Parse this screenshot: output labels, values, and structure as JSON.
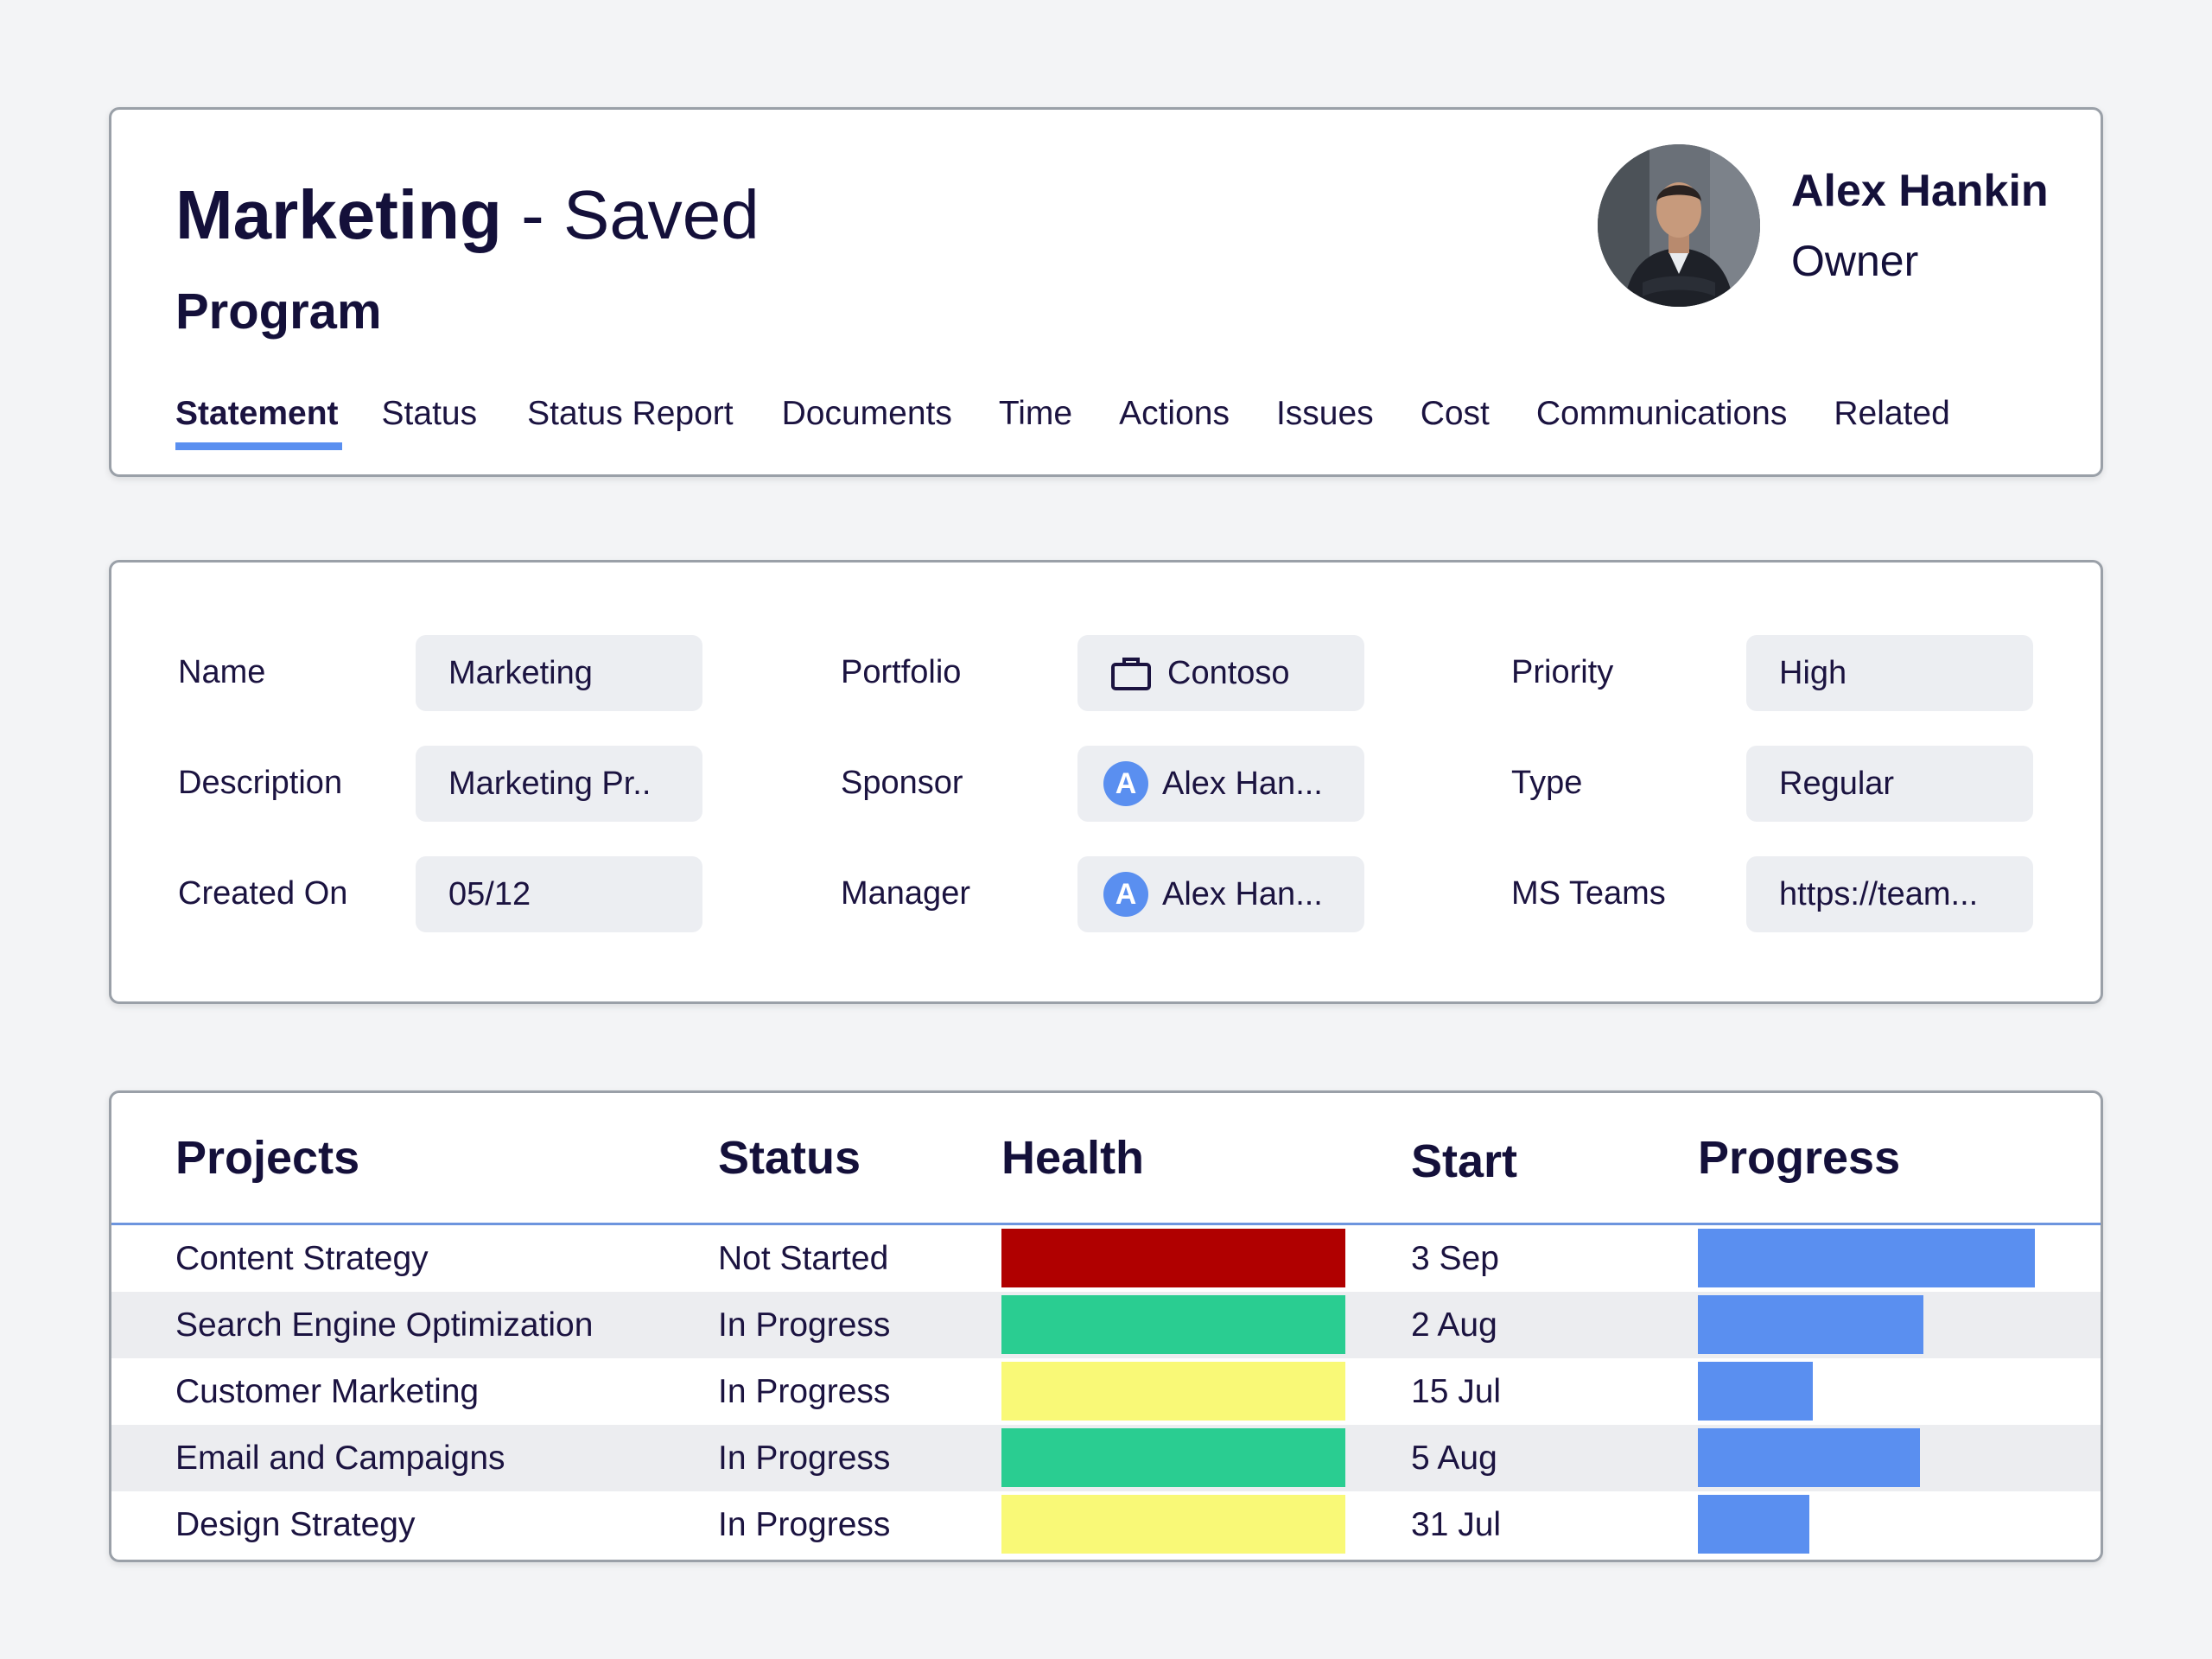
{
  "header": {
    "title_name": "Marketing",
    "title_separator": " - ",
    "title_status": "Saved",
    "subtitle": "Program",
    "owner": {
      "name": "Alex Hankin",
      "role": "Owner"
    },
    "tabs": [
      {
        "label": "Statement",
        "active": true
      },
      {
        "label": "Status"
      },
      {
        "label": "Status Report"
      },
      {
        "label": "Documents"
      },
      {
        "label": "Time"
      },
      {
        "label": "Actions"
      },
      {
        "label": "Issues"
      },
      {
        "label": "Cost"
      },
      {
        "label": "Communications"
      },
      {
        "label": "Related"
      }
    ]
  },
  "fields": {
    "name": {
      "label": "Name",
      "value": "Marketing"
    },
    "description": {
      "label": "Description",
      "value": "Marketing Pr.."
    },
    "created_on": {
      "label": "Created On",
      "value": "05/12"
    },
    "portfolio": {
      "label": "Portfolio",
      "value": "Contoso",
      "icon": "briefcase-icon"
    },
    "sponsor": {
      "label": "Sponsor",
      "value": "Alex Han...",
      "avatar_letter": "A"
    },
    "manager": {
      "label": "Manager",
      "value": "Alex Han...",
      "avatar_letter": "A"
    },
    "priority": {
      "label": "Priority",
      "value": "High"
    },
    "type": {
      "label": "Type",
      "value": "Regular"
    },
    "ms_teams": {
      "label": "MS Teams",
      "value": "https://team..."
    }
  },
  "projects": {
    "columns": {
      "project": "Projects",
      "status": "Status",
      "health": "Health",
      "start": "Start",
      "progress": "Progress"
    },
    "rows": [
      {
        "name": "Content Strategy",
        "status": "Not Started",
        "health": "red",
        "health_color": "#b00000",
        "start": "3 Sep",
        "progress": 1.0
      },
      {
        "name": "Search Engine Optimization",
        "status": "In Progress",
        "health": "green",
        "health_color": "#2acd91",
        "start": "2 Aug",
        "progress": 0.67
      },
      {
        "name": "Customer Marketing",
        "status": "In Progress",
        "health": "yellow",
        "health_color": "#f9f977",
        "start": "15 Jul",
        "progress": 0.34
      },
      {
        "name": "Email and Campaigns",
        "status": "In Progress",
        "health": "green",
        "health_color": "#2acd91",
        "start": "5 Aug",
        "progress": 0.66
      },
      {
        "name": "Design Strategy",
        "status": "In Progress",
        "health": "yellow",
        "health_color": "#f9f977",
        "start": "31 Jul",
        "progress": 0.33
      }
    ]
  },
  "colors": {
    "accent": "#5a8ff0",
    "text": "#1b1340",
    "field_bg": "#eceef2"
  }
}
